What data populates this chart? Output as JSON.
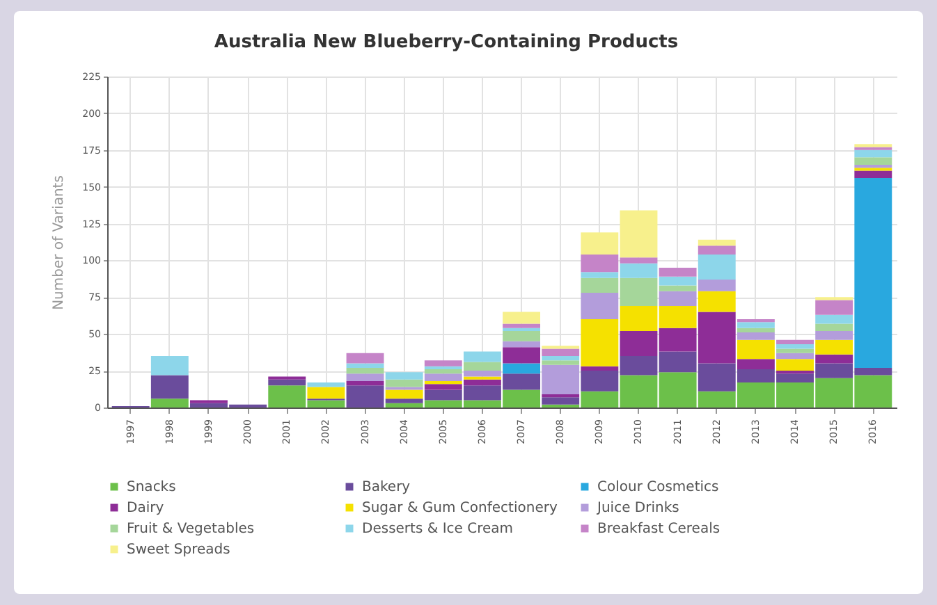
{
  "chart_data": {
    "type": "bar",
    "title": "Australia New Blueberry-Containing Products",
    "ylabel": "Number of Variants",
    "categories": [
      "1997",
      "1998",
      "1999",
      "2000",
      "2001",
      "2002",
      "2003",
      "2004",
      "2005",
      "2006",
      "2007",
      "2008",
      "2009",
      "2010",
      "2011",
      "2012",
      "2013",
      "2014",
      "2015",
      "2016"
    ],
    "stacked": true,
    "ylim": [
      0,
      225
    ],
    "yticks": [
      0,
      25,
      50,
      75,
      100,
      125,
      150,
      175,
      200,
      225
    ],
    "grid": true,
    "legend": "bottom",
    "series": [
      {
        "name": "Snacks",
        "color": "#6cc04a",
        "values": [
          0,
          6,
          0,
          0,
          15,
          5,
          0,
          3,
          5,
          5,
          12,
          2,
          11,
          22,
          24,
          11,
          17,
          17,
          20,
          22
        ]
      },
      {
        "name": "Bakery",
        "color": "#6a4c9c",
        "values": [
          1,
          16,
          3,
          2,
          4,
          1,
          15,
          3,
          7,
          10,
          11,
          5,
          14,
          13,
          14,
          19,
          9,
          6,
          10,
          5
        ]
      },
      {
        "name": "Colour Cosmetics",
        "color": "#29a8df",
        "values": [
          0,
          0,
          0,
          0,
          0,
          0,
          0,
          0,
          0,
          0,
          7,
          0,
          0,
          0,
          0,
          0,
          0,
          0,
          0,
          129
        ]
      },
      {
        "name": "Dairy",
        "color": "#8e2d97",
        "values": [
          0,
          0,
          2,
          0,
          2,
          0,
          3,
          0,
          4,
          4,
          11,
          2,
          3,
          17,
          16,
          35,
          7,
          2,
          6,
          5
        ]
      },
      {
        "name": "Sugar & Gum Confectionery",
        "color": "#f5e100",
        "values": [
          0,
          0,
          0,
          0,
          0,
          8,
          0,
          6,
          2,
          2,
          0,
          0,
          32,
          17,
          15,
          14,
          13,
          8,
          10,
          2
        ]
      },
      {
        "name": "Juice Drinks",
        "color": "#b39ddb",
        "values": [
          0,
          0,
          0,
          0,
          0,
          0,
          5,
          2,
          5,
          4,
          4,
          20,
          18,
          0,
          10,
          8,
          5,
          4,
          6,
          2
        ]
      },
      {
        "name": "Fruit & Vegetables",
        "color": "#a5d69a",
        "values": [
          0,
          0,
          0,
          0,
          0,
          0,
          4,
          5,
          3,
          6,
          7,
          3,
          10,
          19,
          4,
          0,
          3,
          3,
          5,
          5
        ]
      },
      {
        "name": "Desserts & Ice Cream",
        "color": "#8dd6ea",
        "values": [
          0,
          13,
          0,
          0,
          0,
          3,
          3,
          5,
          2,
          7,
          2,
          3,
          4,
          10,
          6,
          17,
          4,
          3,
          6,
          5
        ]
      },
      {
        "name": "Breakfast Cereals",
        "color": "#c584c8",
        "values": [
          0,
          0,
          0,
          0,
          0,
          0,
          7,
          0,
          4,
          0,
          3,
          5,
          12,
          4,
          6,
          6,
          2,
          3,
          10,
          2
        ]
      },
      {
        "name": "Sweet Spreads",
        "color": "#f7f08c",
        "values": [
          0,
          0,
          0,
          0,
          0,
          0,
          0,
          0,
          0,
          0,
          8,
          2,
          15,
          32,
          0,
          4,
          0,
          0,
          2,
          2
        ]
      }
    ]
  }
}
